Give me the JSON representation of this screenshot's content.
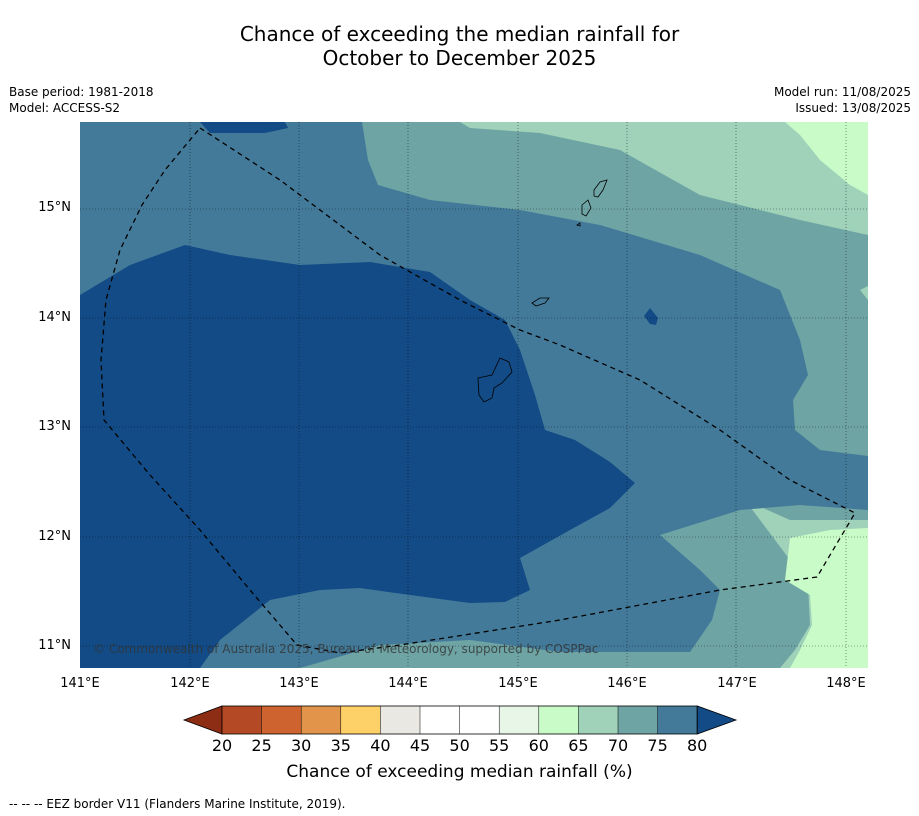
{
  "title_line1": "Chance of exceeding the median rainfall for",
  "title_line2": "October to December 2025",
  "meta": {
    "base_period": "Base period: 1981-2018",
    "model": "Model: ACCESS-S2",
    "model_run": "Model run: 11/08/2025",
    "issued": "Issued: 13/08/2025"
  },
  "axes": {
    "lon_ticks": [
      "141°E",
      "142°E",
      "143°E",
      "144°E",
      "145°E",
      "146°E",
      "147°E",
      "148°E"
    ],
    "lat_ticks": [
      "15°N",
      "14°N",
      "13°N",
      "12°N",
      "11°N"
    ],
    "lon_range": [
      141,
      148.2
    ],
    "lat_range": [
      10.8,
      15.8
    ]
  },
  "copyright": "© Commonwealth of Australia 2025, Bureau of Meteorology, supported by COSPPac",
  "colorbar": {
    "title": "Chance of exceeding median rainfall (%)",
    "labels": [
      "20",
      "25",
      "30",
      "35",
      "40",
      "45",
      "50",
      "55",
      "60",
      "65",
      "70",
      "75",
      "80"
    ],
    "colors": [
      "#8c2d14",
      "#b44a25",
      "#cf6330",
      "#e2954a",
      "#fdd168",
      "#e9e8e3",
      "#ffffff",
      "#ffffff",
      "#e8f6e8",
      "#c8fbc8",
      "#9fd2b9",
      "#6fa4a5",
      "#437a99",
      "#124b86"
    ]
  },
  "footnote": "-- -- -- EEZ border V11 (Flanders Marine Institute, 2019).",
  "map_colors": {
    "c80": "#124b86",
    "c75": "#437a99",
    "c70": "#6fa4a5",
    "c65": "#9fd2b9",
    "c60": "#c8fbc8"
  }
}
